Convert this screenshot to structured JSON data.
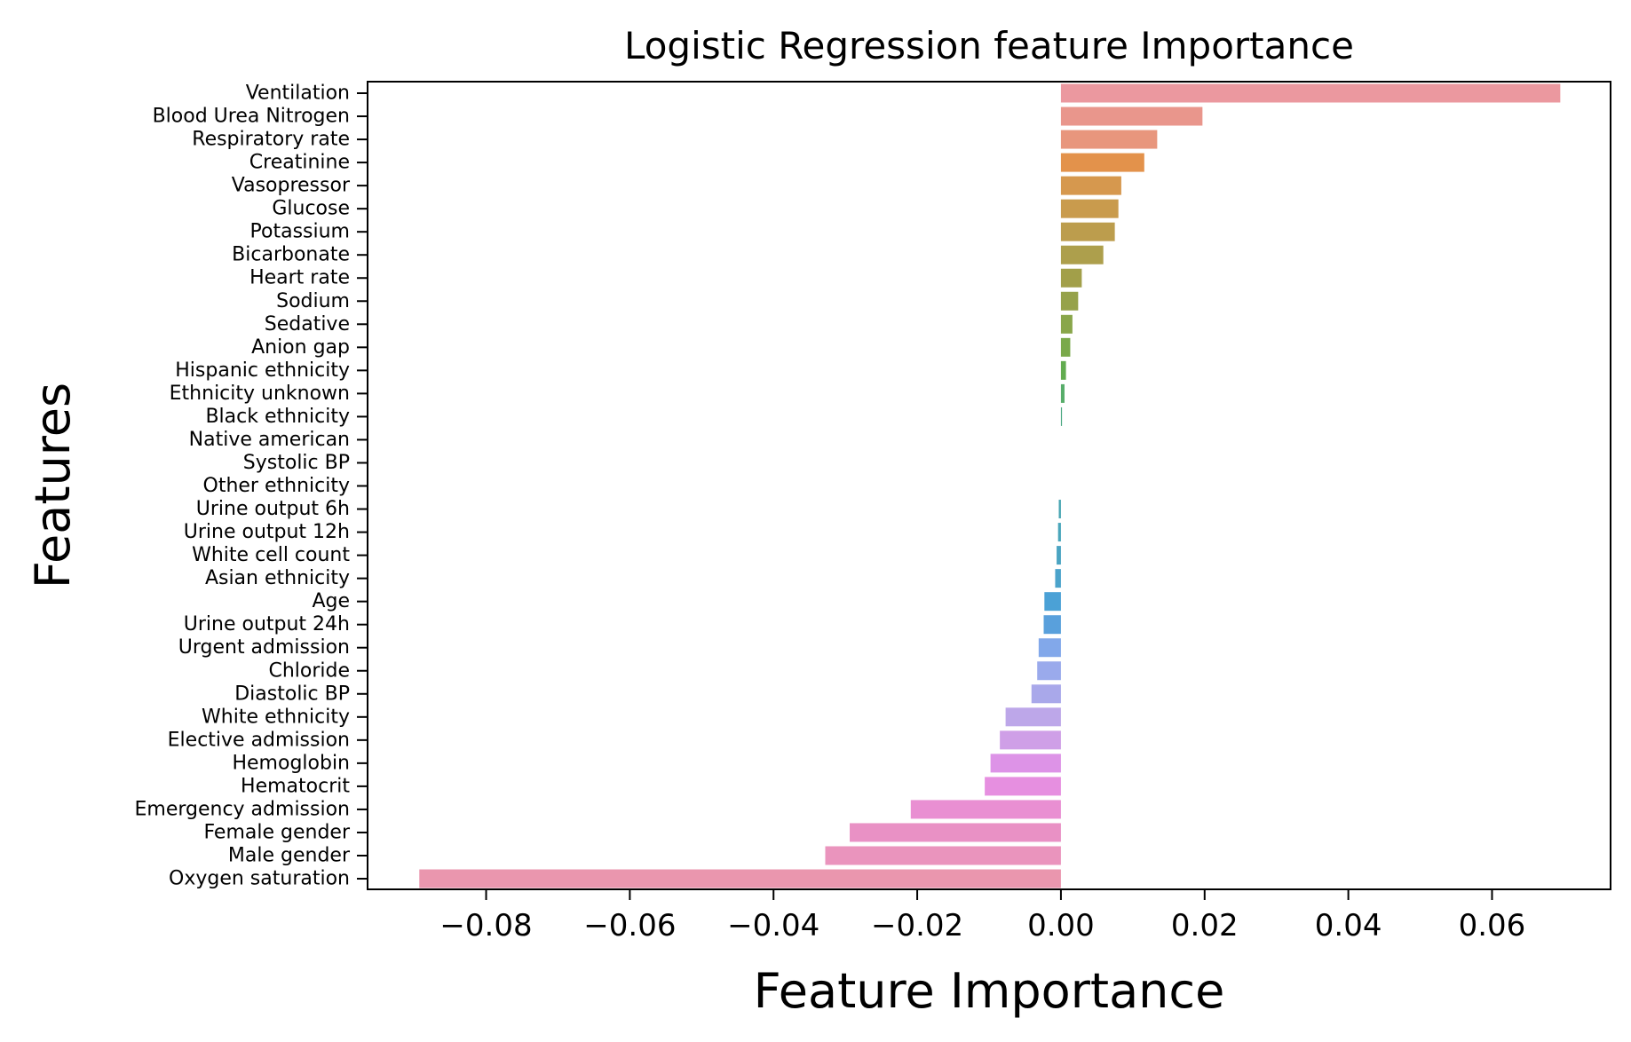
{
  "chart_data": {
    "type": "bar",
    "orientation": "horizontal",
    "title": "Logistic Regression feature Importance",
    "xlabel": "Feature Importance",
    "ylabel": "Features",
    "xlim": [
      -0.0965,
      0.0765
    ],
    "xticks": [
      -0.08,
      -0.06,
      -0.04,
      -0.02,
      0.0,
      0.02,
      0.04,
      0.06
    ],
    "xtick_labels": [
      "−0.08",
      "−0.06",
      "−0.04",
      "−0.02",
      "0.00",
      "0.02",
      "0.04",
      "0.06"
    ],
    "grid": false,
    "legend": "none",
    "categories": [
      "Ventilation",
      "Blood Urea Nitrogen",
      "Respiratory rate",
      "Creatinine",
      "Vasopressor",
      "Glucose",
      "Potassium",
      "Bicarbonate",
      "Heart rate",
      "Sodium",
      "Sedative",
      "Anion gap",
      "Hispanic ethnicity",
      "Ethnicity unknown",
      "Black ethnicity",
      "Native american",
      "Systolic BP",
      "Other ethnicity",
      "Urine output 6h",
      "Urine output 12h",
      "White cell count",
      "Asian ethnicity",
      "Age",
      "Urine output 24h",
      "Urgent admission",
      "Chloride",
      "Diastolic BP",
      "White ethnicity",
      "Elective admission",
      "Hemoglobin",
      "Hematocrit",
      "Emergency admission",
      "Female gender",
      "Male gender",
      "Oxygen saturation"
    ],
    "values": [
      0.0695,
      0.0197,
      0.0134,
      0.0116,
      0.0084,
      0.008,
      0.0075,
      0.0059,
      0.0029,
      0.0024,
      0.0016,
      0.0013,
      0.0007,
      0.0005,
      0.0001,
      0.0,
      0.0,
      0.0,
      -0.0003,
      -0.0004,
      -0.0006,
      -0.0008,
      -0.0023,
      -0.0024,
      -0.0031,
      -0.0033,
      -0.0041,
      -0.0077,
      -0.0085,
      -0.0098,
      -0.0106,
      -0.0209,
      -0.0294,
      -0.0328,
      -0.0893
    ],
    "colors": [
      "#eb989f",
      "#e9968c",
      "#e8967d",
      "#e3924b",
      "#d6984e",
      "#c99b4d",
      "#bc9d4d",
      "#ad9f4c",
      "#a29f49",
      "#96a24a",
      "#89a64a",
      "#7aa94a",
      "#61ab4f",
      "#57ad6a",
      "#4ca982",
      "#4aa891",
      "#4aa79f",
      "#49a6ab",
      "#4aa6b3",
      "#4aa6bb",
      "#4ba4c2",
      "#4ba3cb",
      "#4ba1d6",
      "#59a0dc",
      "#82a8ea",
      "#9aaaec",
      "#a9a8ea",
      "#bda7e9",
      "#cf9fe7",
      "#dd93e7",
      "#e68fe0",
      "#e98fd2",
      "#e991c5",
      "#ea94bd",
      "#ea96ae"
    ]
  }
}
